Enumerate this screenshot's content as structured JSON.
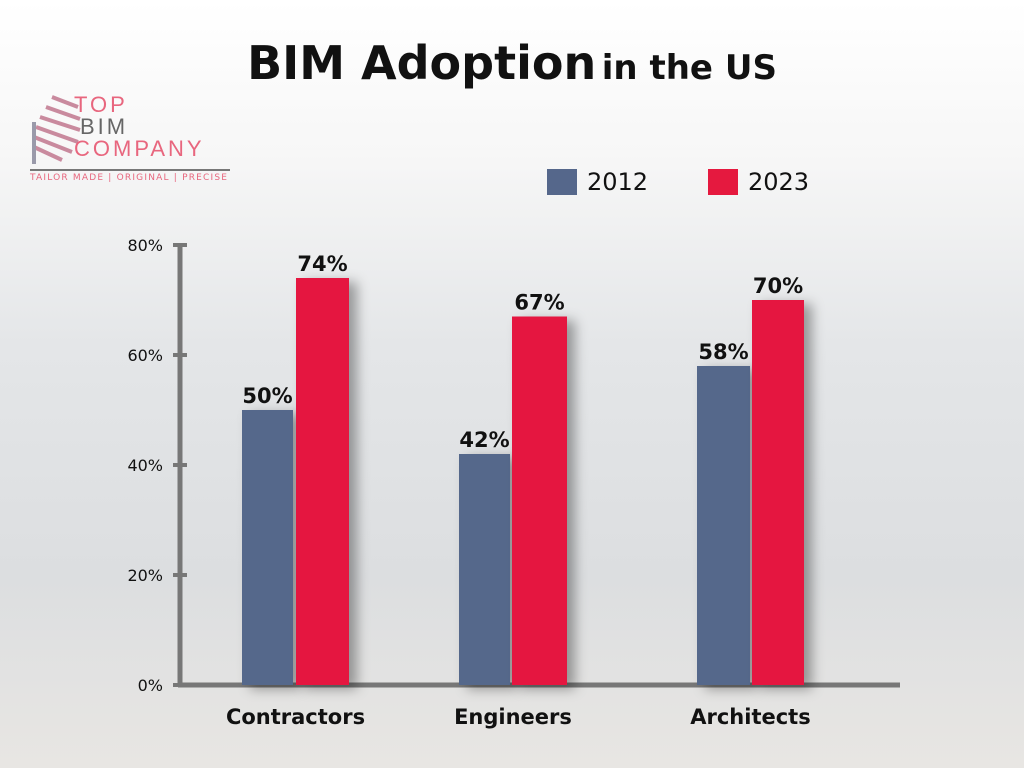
{
  "title": {
    "main": "BIM Adoption",
    "rest": "in the US"
  },
  "logo": {
    "line1": "TOP",
    "line2": "BIM",
    "line3": "COMPANY",
    "tagline": "TAILOR MADE | ORIGINAL | PRECISE"
  },
  "colors": {
    "s2012": "#55678b",
    "s2023": "#e5193f",
    "axis": "#777777",
    "logo_pink": "#e8667e",
    "logo_gray": "#666666"
  },
  "chart_data": {
    "type": "bar",
    "title": "BIM Adoption in the US",
    "categories": [
      "Contractors",
      "Engineers",
      "Architects"
    ],
    "series": [
      {
        "name": "2012",
        "values": [
          50,
          42,
          58
        ],
        "labels": [
          "50%",
          "42%",
          "58%"
        ]
      },
      {
        "name": "2023",
        "values": [
          74,
          67,
          70
        ],
        "labels": [
          "74%",
          "67%",
          "70%"
        ]
      }
    ],
    "ylim": [
      0,
      80
    ],
    "yticks": [
      0,
      20,
      40,
      60,
      80
    ],
    "ytick_labels": [
      "0%",
      "20%",
      "40%",
      "60%",
      "80%"
    ],
    "legend_position": "top-right",
    "grid": false
  }
}
